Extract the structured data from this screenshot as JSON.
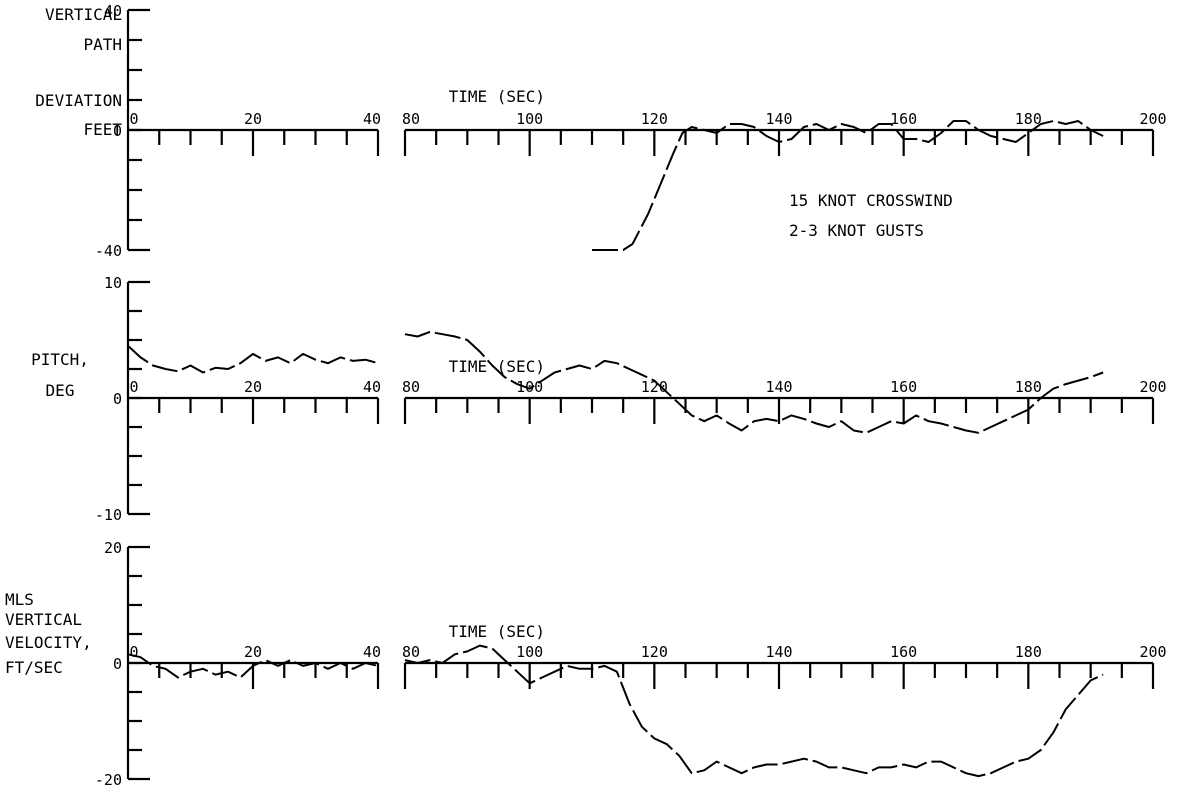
{
  "chart_data": [
    {
      "type": "line",
      "ylabel": [
        "VERTICAL",
        "PATH",
        "DEVIATION",
        "FEET"
      ],
      "xlabel": "TIME (SEC)",
      "ylim": [
        -40,
        40
      ],
      "yticks": [
        "40",
        "0",
        "-40"
      ],
      "x_segments": [
        {
          "range": [
            0,
            40
          ]
        },
        {
          "range": [
            80,
            200
          ]
        }
      ],
      "xtick_labels": [
        "0",
        "20",
        "40",
        "80",
        "100",
        "120",
        "140",
        "160",
        "180",
        "200"
      ],
      "annotations": [
        "15 KNOT CROSSWIND",
        "2-3 KNOT GUSTS"
      ],
      "series": [
        {
          "x": [
            110,
            115,
            116.5,
            119,
            121,
            123,
            124.5,
            126,
            128,
            130,
            132,
            134,
            136,
            138,
            140,
            142,
            144,
            146,
            148,
            150,
            152,
            154,
            156,
            158,
            160,
            162,
            164,
            166,
            168,
            170,
            172,
            174,
            176,
            178,
            180,
            182,
            184,
            186,
            188,
            190,
            192
          ],
          "y": [
            -40,
            -40,
            -38,
            -28,
            -18,
            -8,
            -1,
            1,
            0,
            -1,
            2,
            2,
            1,
            -2,
            -4,
            -3,
            1,
            2,
            0,
            2,
            1,
            -1,
            2,
            2,
            -3,
            -3,
            -4,
            -1,
            3,
            3,
            0,
            -2,
            -3,
            -4,
            -1,
            2,
            3,
            2,
            3,
            0,
            -2
          ]
        }
      ]
    },
    {
      "type": "line",
      "ylabel": [
        "PITCH,",
        "DEG"
      ],
      "xlabel": "TIME (SEC)",
      "ylim": [
        -10,
        10
      ],
      "yticks": [
        "10",
        "0",
        "-10"
      ],
      "x_segments": [
        {
          "range": [
            0,
            40
          ]
        },
        {
          "range": [
            80,
            200
          ]
        }
      ],
      "xtick_labels": [
        "0",
        "20",
        "40",
        "80",
        "100",
        "120",
        "140",
        "160",
        "180",
        "200"
      ],
      "series": [
        {
          "x": [
            0,
            2,
            4,
            6,
            8,
            10,
            12,
            14,
            16,
            18,
            20,
            22,
            24,
            26,
            28,
            30,
            32,
            34,
            36,
            38,
            40
          ],
          "y": [
            4.5,
            3.5,
            2.8,
            2.5,
            2.3,
            2.8,
            2.2,
            2.6,
            2.5,
            3.0,
            3.8,
            3.2,
            3.5,
            3.0,
            3.8,
            3.3,
            3.0,
            3.5,
            3.2,
            3.3,
            3.0
          ]
        },
        {
          "x": [
            80,
            82,
            84,
            86,
            88,
            90,
            92,
            94,
            96,
            98,
            100,
            102,
            104,
            106,
            108,
            110,
            112,
            114,
            116,
            118,
            120,
            122,
            124,
            126,
            128,
            130,
            132,
            134,
            136,
            138,
            140,
            142,
            144,
            146,
            148,
            150,
            152,
            154,
            156,
            158,
            160,
            162,
            164,
            166,
            168,
            170,
            172,
            174,
            176,
            178,
            180,
            182,
            184,
            186,
            188,
            190,
            192
          ],
          "y": [
            5.5,
            5.3,
            5.7,
            5.5,
            5.3,
            5.0,
            4.0,
            2.8,
            1.8,
            1.2,
            0.8,
            1.5,
            2.2,
            2.5,
            2.8,
            2.5,
            3.2,
            3.0,
            2.5,
            2.0,
            1.5,
            0.5,
            -0.5,
            -1.5,
            -2.0,
            -1.5,
            -2.2,
            -2.8,
            -2.0,
            -1.8,
            -2.0,
            -1.5,
            -1.8,
            -2.2,
            -2.5,
            -2.0,
            -2.8,
            -3.0,
            -2.5,
            -2.0,
            -2.2,
            -1.5,
            -2.0,
            -2.2,
            -2.5,
            -2.8,
            -3.0,
            -2.5,
            -2.0,
            -1.5,
            -1.0,
            0.0,
            0.8,
            1.2,
            1.5,
            1.8,
            2.2
          ]
        }
      ]
    },
    {
      "type": "line",
      "ylabel": [
        "MLS",
        "VERTICAL",
        "VELOCITY,",
        "FT/SEC"
      ],
      "xlabel": "TIME (SEC)",
      "ylim": [
        -20,
        20
      ],
      "yticks": [
        "20",
        "0",
        "-20"
      ],
      "x_segments": [
        {
          "range": [
            0,
            40
          ]
        },
        {
          "range": [
            80,
            200
          ]
        }
      ],
      "xtick_labels": [
        "0",
        "20",
        "40",
        "80",
        "100",
        "120",
        "140",
        "160",
        "180",
        "200"
      ],
      "series": [
        {
          "x": [
            0,
            2,
            4,
            6,
            8,
            10,
            12,
            14,
            16,
            18,
            20,
            22,
            24,
            26,
            28,
            30,
            32,
            34,
            36,
            38,
            40
          ],
          "y": [
            1.5,
            1.0,
            -0.5,
            -1.0,
            -2.5,
            -1.5,
            -1.0,
            -2.0,
            -1.5,
            -2.5,
            -0.5,
            0.5,
            -0.5,
            0.5,
            -0.5,
            0.0,
            -1.0,
            0.0,
            -1.0,
            0.0,
            -0.5
          ]
        },
        {
          "x": [
            80,
            82,
            84,
            86,
            88,
            90,
            92,
            94,
            96,
            98,
            100,
            102,
            104,
            106,
            108,
            110,
            112,
            114,
            116,
            118,
            120,
            122,
            124,
            126,
            128,
            130,
            132,
            134,
            136,
            138,
            140,
            142,
            144,
            146,
            148,
            150,
            152,
            154,
            156,
            158,
            160,
            162,
            164,
            166,
            168,
            170,
            172,
            174,
            176,
            178,
            180,
            182,
            184,
            186,
            188,
            190,
            192
          ],
          "y": [
            0.5,
            0.0,
            0.5,
            0.0,
            1.5,
            2.0,
            3.0,
            2.5,
            0.5,
            -1.5,
            -3.5,
            -2.5,
            -1.5,
            -0.5,
            -1.0,
            -1.0,
            -0.5,
            -1.5,
            -7.0,
            -11.0,
            -13.0,
            -14.0,
            -16.0,
            -19.0,
            -18.5,
            -17.0,
            -18.0,
            -19.0,
            -18.0,
            -17.5,
            -17.5,
            -17.0,
            -16.5,
            -17.0,
            -18.0,
            -18.0,
            -18.5,
            -19.0,
            -18.0,
            -18.0,
            -17.5,
            -18.0,
            -17.0,
            -17.0,
            -18.0,
            -19.0,
            -19.5,
            -19.0,
            -18.0,
            -17.0,
            -16.5,
            -15.0,
            -12.0,
            -8.0,
            -5.5,
            -3.0,
            -2.0
          ]
        }
      ]
    }
  ]
}
